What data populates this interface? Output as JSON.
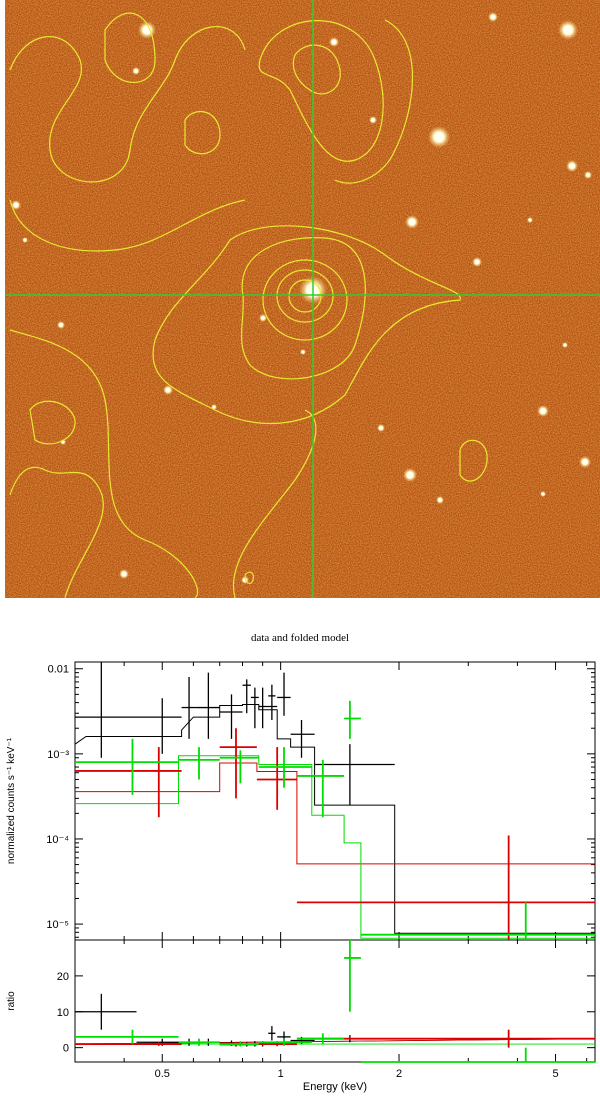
{
  "image_panel": {
    "background_color": "#b04a10",
    "contour_color": "#e8e830",
    "crosshair_color": "#33cc33"
  },
  "chart_data": {
    "type": "line",
    "title": "data and folded model",
    "xlabel": "Energy (keV)",
    "x_scale": "log",
    "xlim": [
      0.3,
      6.3
    ],
    "x_ticks": [
      0.5,
      1,
      2,
      5
    ],
    "x_tick_labels": [
      "0.5",
      "1",
      "2",
      "5"
    ],
    "upper_panel": {
      "ylabel": "normalized counts s⁻¹ keV⁻¹",
      "y_scale": "log",
      "ylim": [
        6.5e-06,
        0.012
      ],
      "y_ticks": [
        1e-05,
        0.0001,
        0.001,
        0.01
      ],
      "y_tick_labels": [
        "10⁻⁵",
        "10⁻⁴",
        "10⁻³",
        "0.01"
      ]
    },
    "lower_panel": {
      "ylabel": "ratio",
      "ylim": [
        -4,
        30
      ],
      "y_ticks": [
        0,
        10,
        20
      ],
      "y_tick_labels": [
        "0",
        "10",
        "20"
      ]
    },
    "series": [
      {
        "color": "#000000",
        "data": [
          {
            "x": 0.35,
            "xerr": [
              0.3,
              0.43
            ],
            "y": 0.0027,
            "yerr": [
              0.0009,
              0.012
            ],
            "ratio": 10,
            "rerr": [
              5,
              15
            ]
          },
          {
            "x": 0.5,
            "xerr": [
              0.43,
              0.56
            ],
            "y": 0.0027,
            "yerr": [
              0.001,
              0.0045
            ],
            "ratio": 1.5,
            "rerr": [
              0.5,
              2.5
            ]
          },
          {
            "x": 0.585,
            "xerr": [
              0.56,
              0.61
            ],
            "y": 0.0035,
            "yerr": [
              0.0015,
              0.008
            ],
            "ratio": 1.5,
            "rerr": [
              0.5,
              2.5
            ]
          },
          {
            "x": 0.655,
            "xerr": [
              0.61,
              0.7
            ],
            "y": 0.0035,
            "yerr": [
              0.0015,
              0.009
            ],
            "ratio": 1.5,
            "rerr": [
              0.5,
              2.5
            ]
          },
          {
            "x": 0.75,
            "xerr": [
              0.7,
              0.8
            ],
            "y": 0.0031,
            "yerr": [
              0.0015,
              0.005
            ],
            "ratio": 1.2,
            "rerr": [
              0.5,
              2
            ]
          },
          {
            "x": 0.82,
            "xerr": [
              0.8,
              0.84
            ],
            "y": 0.0064,
            "yerr": [
              0.003,
              0.0075
            ],
            "ratio": 0.9,
            "rerr": [
              0.3,
              1.5
            ]
          },
          {
            "x": 0.86,
            "xerr": [
              0.84,
              0.88
            ],
            "y": 0.0046,
            "yerr": [
              0.002,
              0.006
            ],
            "ratio": 1,
            "rerr": [
              0.3,
              1.8
            ]
          },
          {
            "x": 0.9,
            "xerr": [
              0.88,
              0.98
            ],
            "y": 0.0036,
            "yerr": [
              0.002,
              0.006
            ],
            "ratio": 1,
            "rerr": [
              0.3,
              1.8
            ]
          },
          {
            "x": 0.95,
            "xerr": [
              0.93,
              0.97
            ],
            "y": 0.0048,
            "yerr": [
              0.0025,
              0.0065
            ],
            "ratio": 4,
            "rerr": [
              2,
              6
            ]
          },
          {
            "x": 1.02,
            "xerr": [
              0.98,
              1.06
            ],
            "y": 0.0046,
            "yerr": [
              0.0028,
              0.009
            ],
            "ratio": 3,
            "rerr": [
              1.5,
              4.5
            ]
          },
          {
            "x": 1.13,
            "xerr": [
              1.06,
              1.22
            ],
            "y": 0.0017,
            "yerr": [
              0.0009,
              0.0025
            ],
            "ratio": 2,
            "rerr": [
              1,
              3
            ]
          },
          {
            "x": 1.5,
            "xerr": [
              1.22,
              1.95
            ],
            "y": 0.00075,
            "yerr": [
              0.00025,
              0.0013
            ],
            "ratio": 2.5,
            "rerr": [
              1.5,
              3.5
            ]
          }
        ],
        "model": [
          [
            0.3,
            0.0013
          ],
          [
            0.32,
            0.0016
          ],
          [
            0.43,
            0.0016
          ],
          [
            0.56,
            0.0016
          ],
          [
            0.56,
            0.0019
          ],
          [
            0.6,
            0.0027
          ],
          [
            0.7,
            0.0027
          ],
          [
            0.7,
            0.0037
          ],
          [
            0.8,
            0.0037
          ],
          [
            0.8,
            0.0038
          ],
          [
            0.88,
            0.0038
          ],
          [
            0.88,
            0.0033
          ],
          [
            0.98,
            0.0033
          ],
          [
            0.98,
            0.0015
          ],
          [
            1.06,
            0.0015
          ],
          [
            1.06,
            0.0012
          ],
          [
            1.22,
            0.0012
          ],
          [
            1.22,
            0.00025
          ],
          [
            1.95,
            0.00025
          ],
          [
            1.95,
            7.8e-06
          ],
          [
            6.3,
            7.8e-06
          ]
        ]
      },
      {
        "color": "#dd0000",
        "data": [
          {
            "x": 0.38,
            "xerr": [
              0.3,
              0.43
            ],
            "y": 0.00063,
            "yerr": [
              0.00063,
              0.00063
            ],
            "ratio": 1,
            "rerr": [
              1,
              1
            ]
          },
          {
            "x": 0.49,
            "xerr": [
              0.43,
              0.56
            ],
            "y": 0.00063,
            "yerr": [
              0.00018,
              0.0012
            ],
            "ratio": 1,
            "rerr": [
              0.5,
              1.5
            ]
          },
          {
            "x": 0.77,
            "xerr": [
              0.7,
              0.87
            ],
            "y": 0.0012,
            "yerr": [
              0.0003,
              0.002
            ],
            "ratio": 0.9,
            "rerr": [
              0.3,
              1.6
            ]
          },
          {
            "x": 0.98,
            "xerr": [
              0.87,
              1.1
            ],
            "y": 0.0005,
            "yerr": [
              0.00022,
              0.0012
            ],
            "ratio": 1,
            "rerr": [
              0.4,
              1.8
            ]
          },
          {
            "x": 3.8,
            "xerr": [
              1.1,
              6.3
            ],
            "y": 1.8e-05,
            "yerr": [
              6.5e-06,
              0.00011
            ],
            "ratio": 2.5,
            "rerr": [
              0,
              5
            ]
          }
        ],
        "model": [
          [
            0.3,
            0.00036
          ],
          [
            0.7,
            0.00036
          ],
          [
            0.7,
            0.00078
          ],
          [
            0.87,
            0.00078
          ],
          [
            0.87,
            0.00062
          ],
          [
            1.1,
            0.00062
          ],
          [
            1.1,
            5.1e-05
          ],
          [
            6.3,
            5.1e-05
          ]
        ]
      },
      {
        "color": "#00dd00",
        "data": [
          {
            "x": 0.42,
            "xerr": [
              0.3,
              0.55
            ],
            "y": 0.0008,
            "yerr": [
              0.00033,
              0.0015
            ],
            "ratio": 3,
            "rerr": [
              1,
              5
            ]
          },
          {
            "x": 0.62,
            "xerr": [
              0.55,
              0.7
            ],
            "y": 0.00085,
            "yerr": [
              0.0005,
              0.0012
            ],
            "ratio": 1.5,
            "rerr": [
              0.5,
              2.5
            ]
          },
          {
            "x": 0.79,
            "xerr": [
              0.7,
              0.88
            ],
            "y": 0.0009,
            "yerr": [
              0.00045,
              0.0011
            ],
            "ratio": 1,
            "rerr": [
              0.3,
              1.8
            ]
          },
          {
            "x": 1.02,
            "xerr": [
              0.88,
              1.2
            ],
            "y": 0.0007,
            "yerr": [
              0.0004,
              0.0012
            ],
            "ratio": 1.5,
            "rerr": [
              0.5,
              2.5
            ]
          },
          {
            "x": 1.28,
            "xerr": [
              1.1,
              1.45
            ],
            "y": 0.00055,
            "yerr": [
              0.00018,
              0.00085
            ],
            "ratio": 2.5,
            "rerr": [
              1,
              4
            ]
          },
          {
            "x": 1.5,
            "xerr": [
              1.45,
              1.6
            ],
            "y": 0.0026,
            "yerr": [
              0.0015,
              0.0042
            ],
            "ratio": 25,
            "rerr": [
              10,
              36
            ]
          },
          {
            "x": 4.2,
            "xerr": [
              1.6,
              6.3
            ],
            "y": 7.5e-06,
            "yerr": [
              6.5e-06,
              1.8e-05
            ],
            "ratio": -4,
            "rerr": [
              -6,
              0
            ]
          }
        ],
        "model": [
          [
            0.3,
            0.00026
          ],
          [
            0.55,
            0.00026
          ],
          [
            0.55,
            0.00095
          ],
          [
            0.88,
            0.00095
          ],
          [
            0.88,
            0.00075
          ],
          [
            1.2,
            0.00075
          ],
          [
            1.2,
            0.00019
          ],
          [
            1.45,
            0.00019
          ],
          [
            1.45,
            9e-05
          ],
          [
            1.6,
            9e-05
          ],
          [
            1.6,
            6.8e-06
          ],
          [
            6.3,
            6.8e-06
          ]
        ]
      }
    ]
  }
}
